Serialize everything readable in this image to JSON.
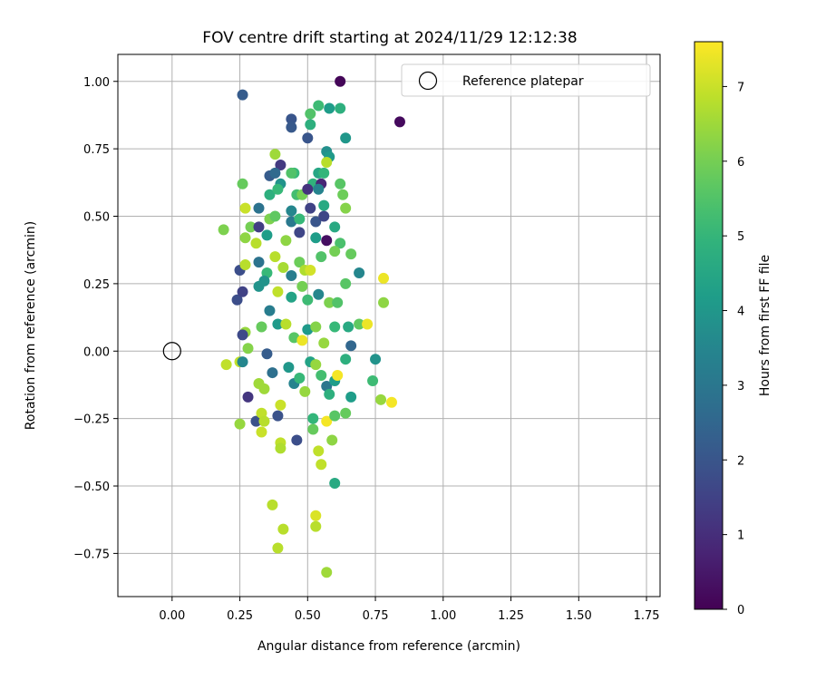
{
  "chart_data": {
    "type": "scatter",
    "title": "FOV centre drift starting at 2024/11/29 12:12:38",
    "xlabel": "Angular distance from reference (arcmin)",
    "ylabel": "Rotation from reference (arcmin)",
    "xlim": [
      -0.2,
      1.8
    ],
    "ylim": [
      -0.91,
      1.1
    ],
    "x_ticks": [
      0.0,
      0.25,
      0.5,
      0.75,
      1.0,
      1.25,
      1.5,
      1.75
    ],
    "x_tick_labels": [
      "0.00",
      "0.25",
      "0.50",
      "0.75",
      "1.00",
      "1.25",
      "1.50",
      "1.75"
    ],
    "y_ticks": [
      -0.75,
      -0.5,
      -0.25,
      0.0,
      0.25,
      0.5,
      0.75,
      1.0
    ],
    "y_tick_labels": [
      "−0.75",
      "−0.50",
      "−0.25",
      "0.00",
      "0.25",
      "0.50",
      "0.75",
      "1.00"
    ],
    "grid": true,
    "colormap": "viridis",
    "colorbar": {
      "label": "Hours from first FF file",
      "min": 0,
      "max": 7.6,
      "ticks": [
        0,
        1,
        2,
        3,
        4,
        5,
        6,
        7
      ],
      "tick_labels": [
        "0",
        "1",
        "2",
        "3",
        "4",
        "5",
        "6",
        "7"
      ]
    },
    "legend": {
      "position": "top-right",
      "entries": [
        "Reference platepar"
      ]
    },
    "reference": {
      "x": 0.0,
      "y": 0.0,
      "label": "Reference platepar"
    },
    "points": [
      [
        0.62,
        1.0,
        0.1
      ],
      [
        0.26,
        0.95,
        2.2
      ],
      [
        0.84,
        0.85,
        0.2
      ],
      [
        0.44,
        0.86,
        2.0
      ],
      [
        0.44,
        0.83,
        2.1
      ],
      [
        0.51,
        0.88,
        5.5
      ],
      [
        0.54,
        0.91,
        5.2
      ],
      [
        0.58,
        0.9,
        4.2
      ],
      [
        0.62,
        0.9,
        4.8
      ],
      [
        0.51,
        0.84,
        4.8
      ],
      [
        0.5,
        0.79,
        2.0
      ],
      [
        0.64,
        0.79,
        4.0
      ],
      [
        0.38,
        0.73,
        6.5
      ],
      [
        0.57,
        0.74,
        3.8
      ],
      [
        0.58,
        0.72,
        4.1
      ],
      [
        0.4,
        0.69,
        1.3
      ],
      [
        0.36,
        0.65,
        2.2
      ],
      [
        0.38,
        0.66,
        2.6
      ],
      [
        0.45,
        0.66,
        5.1
      ],
      [
        0.44,
        0.66,
        5.5
      ],
      [
        0.54,
        0.66,
        4.5
      ],
      [
        0.56,
        0.66,
        5.0
      ],
      [
        0.57,
        0.7,
        6.8
      ],
      [
        0.26,
        0.62,
        5.8
      ],
      [
        0.4,
        0.62,
        3.9
      ],
      [
        0.52,
        0.62,
        4.9
      ],
      [
        0.55,
        0.62,
        0.8
      ],
      [
        0.62,
        0.62,
        5.6
      ],
      [
        0.36,
        0.58,
        4.8
      ],
      [
        0.39,
        0.6,
        5.1
      ],
      [
        0.46,
        0.58,
        5.3
      ],
      [
        0.48,
        0.58,
        6.0
      ],
      [
        0.5,
        0.6,
        1.1
      ],
      [
        0.54,
        0.6,
        3.4
      ],
      [
        0.63,
        0.58,
        5.9
      ],
      [
        0.27,
        0.53,
        7.0
      ],
      [
        0.32,
        0.53,
        2.9
      ],
      [
        0.44,
        0.52,
        3.5
      ],
      [
        0.51,
        0.53,
        1.5
      ],
      [
        0.56,
        0.54,
        4.6
      ],
      [
        0.64,
        0.53,
        6.2
      ],
      [
        0.19,
        0.45,
        6.1
      ],
      [
        0.29,
        0.46,
        6.0
      ],
      [
        0.32,
        0.46,
        1.4
      ],
      [
        0.36,
        0.49,
        6.1
      ],
      [
        0.38,
        0.5,
        5.7
      ],
      [
        0.44,
        0.48,
        3.1
      ],
      [
        0.47,
        0.49,
        5.1
      ],
      [
        0.53,
        0.48,
        2.0
      ],
      [
        0.56,
        0.5,
        1.6
      ],
      [
        0.6,
        0.46,
        4.6
      ],
      [
        0.27,
        0.42,
        6.3
      ],
      [
        0.31,
        0.4,
        6.8
      ],
      [
        0.35,
        0.43,
        4.2
      ],
      [
        0.42,
        0.41,
        6.3
      ],
      [
        0.47,
        0.44,
        1.6
      ],
      [
        0.53,
        0.42,
        4.2
      ],
      [
        0.57,
        0.41,
        0.3
      ],
      [
        0.62,
        0.4,
        5.4
      ],
      [
        0.25,
        0.3,
        1.8
      ],
      [
        0.27,
        0.32,
        6.8
      ],
      [
        0.32,
        0.33,
        2.9
      ],
      [
        0.35,
        0.29,
        5.1
      ],
      [
        0.38,
        0.35,
        6.8
      ],
      [
        0.41,
        0.31,
        6.6
      ],
      [
        0.44,
        0.28,
        3.2
      ],
      [
        0.47,
        0.33,
        5.9
      ],
      [
        0.49,
        0.3,
        6.7
      ],
      [
        0.51,
        0.3,
        7.1
      ],
      [
        0.55,
        0.35,
        5.5
      ],
      [
        0.6,
        0.37,
        6.0
      ],
      [
        0.66,
        0.36,
        5.8
      ],
      [
        0.69,
        0.29,
        3.5
      ],
      [
        0.24,
        0.19,
        1.8
      ],
      [
        0.26,
        0.22,
        1.5
      ],
      [
        0.32,
        0.24,
        3.9
      ],
      [
        0.34,
        0.26,
        3.9
      ],
      [
        0.39,
        0.22,
        6.9
      ],
      [
        0.44,
        0.2,
        4.4
      ],
      [
        0.48,
        0.24,
        6.0
      ],
      [
        0.5,
        0.19,
        5.2
      ],
      [
        0.54,
        0.21,
        3.5
      ],
      [
        0.58,
        0.18,
        6.1
      ],
      [
        0.61,
        0.18,
        5.5
      ],
      [
        0.64,
        0.25,
        5.6
      ],
      [
        0.69,
        0.1,
        5.7
      ],
      [
        0.78,
        0.27,
        7.4
      ],
      [
        0.78,
        0.18,
        6.3
      ],
      [
        0.27,
        0.07,
        6.4
      ],
      [
        0.28,
        0.01,
        6.2
      ],
      [
        0.33,
        0.09,
        5.8
      ],
      [
        0.36,
        0.15,
        3.2
      ],
      [
        0.39,
        0.1,
        4.1
      ],
      [
        0.42,
        0.1,
        6.8
      ],
      [
        0.45,
        0.05,
        5.6
      ],
      [
        0.48,
        0.04,
        7.4
      ],
      [
        0.5,
        0.08,
        4.1
      ],
      [
        0.53,
        0.09,
        6.2
      ],
      [
        0.56,
        0.03,
        6.4
      ],
      [
        0.6,
        0.09,
        5.1
      ],
      [
        0.65,
        0.09,
        4.6
      ],
      [
        0.66,
        0.02,
        2.5
      ],
      [
        0.72,
        0.1,
        7.4
      ],
      [
        0.2,
        -0.05,
        6.9
      ],
      [
        0.25,
        -0.04,
        6.9
      ],
      [
        0.26,
        0.06,
        1.7
      ],
      [
        0.26,
        -0.04,
        3.5
      ],
      [
        0.28,
        -0.17,
        1.2
      ],
      [
        0.31,
        -0.26,
        1.9
      ],
      [
        0.32,
        -0.12,
        6.5
      ],
      [
        0.34,
        -0.14,
        6.5
      ],
      [
        0.35,
        -0.01,
        2.2
      ],
      [
        0.37,
        -0.08,
        2.8
      ],
      [
        0.4,
        -0.2,
        7.0
      ],
      [
        0.43,
        -0.06,
        4.0
      ],
      [
        0.45,
        -0.12,
        3.4
      ],
      [
        0.47,
        -0.1,
        5.1
      ],
      [
        0.49,
        -0.15,
        6.4
      ],
      [
        0.51,
        -0.04,
        4.4
      ],
      [
        0.53,
        -0.05,
        6.4
      ],
      [
        0.55,
        -0.09,
        5.3
      ],
      [
        0.57,
        -0.13,
        3.0
      ],
      [
        0.58,
        -0.16,
        4.8
      ],
      [
        0.6,
        -0.11,
        4.2
      ],
      [
        0.61,
        -0.09,
        7.5
      ],
      [
        0.64,
        -0.03,
        4.8
      ],
      [
        0.66,
        -0.17,
        4.2
      ],
      [
        0.74,
        -0.11,
        5.2
      ],
      [
        0.75,
        -0.03,
        3.9
      ],
      [
        0.77,
        -0.18,
        6.4
      ],
      [
        0.81,
        -0.19,
        7.5
      ],
      [
        0.33,
        -0.23,
        6.9
      ],
      [
        0.34,
        -0.26,
        6.8
      ],
      [
        0.39,
        -0.24,
        1.9
      ],
      [
        0.46,
        -0.33,
        1.8
      ],
      [
        0.52,
        -0.29,
        5.8
      ],
      [
        0.52,
        -0.25,
        5.0
      ],
      [
        0.57,
        -0.26,
        7.5
      ],
      [
        0.6,
        -0.24,
        5.6
      ],
      [
        0.64,
        -0.23,
        5.8
      ],
      [
        0.25,
        -0.27,
        6.4
      ],
      [
        0.33,
        -0.3,
        7.0
      ],
      [
        0.4,
        -0.34,
        6.9
      ],
      [
        0.4,
        -0.36,
        6.7
      ],
      [
        0.54,
        -0.37,
        6.9
      ],
      [
        0.55,
        -0.42,
        6.9
      ],
      [
        0.59,
        -0.33,
        6.3
      ],
      [
        0.6,
        -0.49,
        4.6
      ],
      [
        0.37,
        -0.57,
        6.8
      ],
      [
        0.53,
        -0.61,
        7.2
      ],
      [
        0.41,
        -0.66,
        6.8
      ],
      [
        0.53,
        -0.65,
        6.8
      ],
      [
        0.39,
        -0.73,
        6.8
      ],
      [
        0.57,
        -0.82,
        6.5
      ]
    ]
  }
}
